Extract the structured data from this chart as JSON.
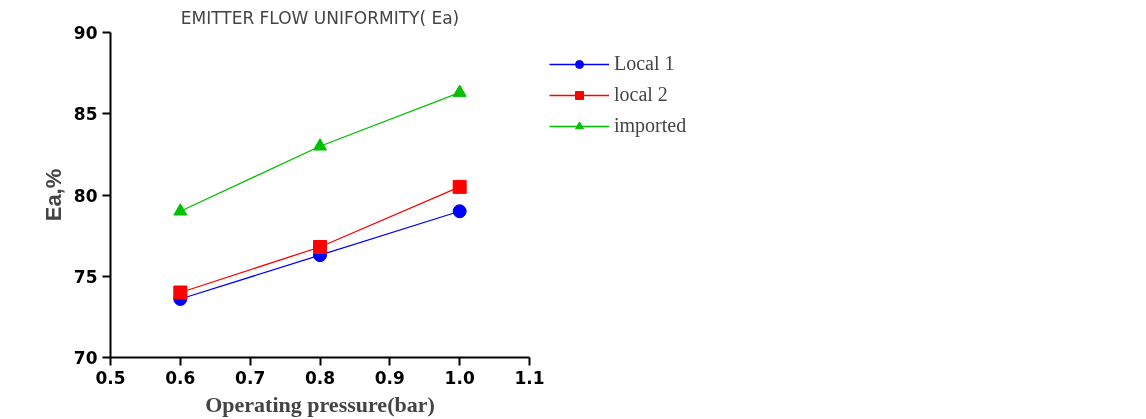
{
  "chart_data": {
    "type": "line",
    "title": "EMITTER FLOW UNIFORMITY( Ea)",
    "xlabel": "Operating pressure(bar)",
    "ylabel": "Ea,%",
    "x": [
      0.6,
      0.8,
      1.0
    ],
    "series": [
      {
        "name": "Local 1",
        "color": "#0000ff",
        "marker": "circle",
        "values": [
          73.6,
          76.3,
          79.0
        ]
      },
      {
        "name": "local 2",
        "color": "#ff0000",
        "marker": "square",
        "values": [
          74.0,
          76.8,
          80.5
        ]
      },
      {
        "name": "imported",
        "color": "#00c000",
        "marker": "triangle",
        "values": [
          79.0,
          83.0,
          86.3
        ]
      }
    ],
    "xlim": [
      0.5,
      1.1
    ],
    "xticks": [
      0.5,
      0.6,
      0.7,
      0.8,
      0.9,
      {
        "value": 1.0,
        "label": "1.0"
      },
      1.1
    ],
    "ylim": [
      70,
      90
    ],
    "yticks": [
      70,
      75,
      80,
      85,
      90
    ],
    "grid": false,
    "legend": "right",
    "line_style": "solid"
  }
}
